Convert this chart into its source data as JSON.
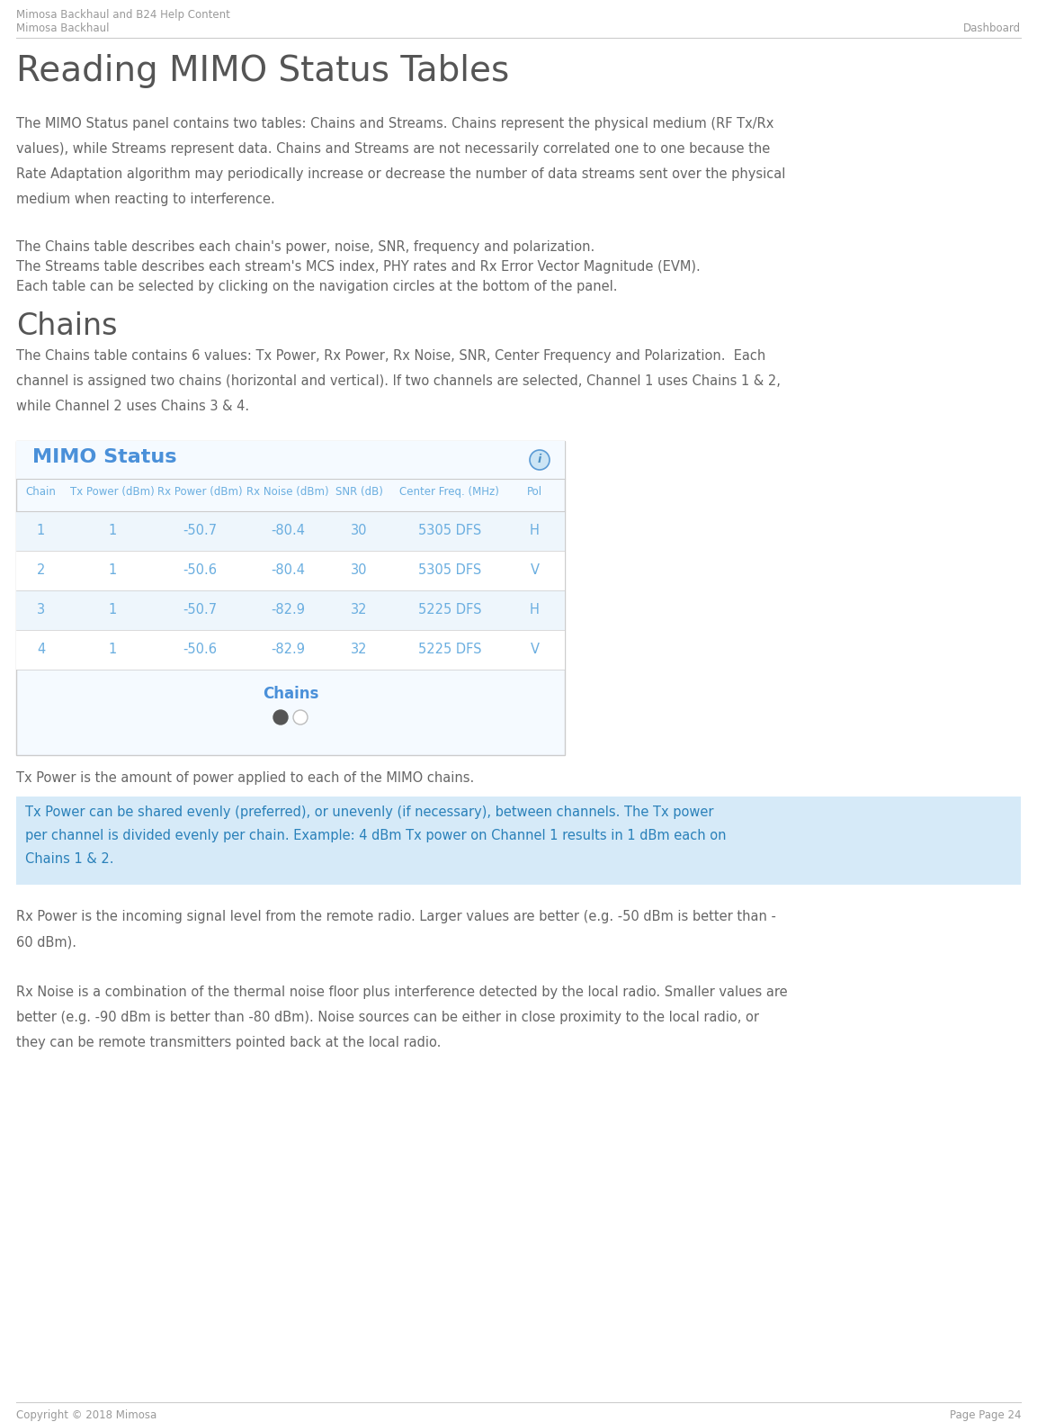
{
  "header_line1": "Mimosa Backhaul and B24 Help Content",
  "header_line2": "Mimosa Backhaul",
  "header_right": "Dashboard",
  "page_title": "Reading MIMO Status Tables",
  "para1": "The MIMO Status panel contains two tables: Chains and Streams. Chains represent the physical medium (RF Tx/Rx values), while Streams represent data. Chains and Streams are not necessarily correlated one to one because the Rate Adaptation algorithm may periodically increase or decrease the number of data streams sent over the physical medium when reacting to interference.",
  "para2_line1": "The Chains table describes each chain's power, noise, SNR, frequency and polarization.",
  "para2_line2": "The Streams table describes each stream's MCS index, PHY rates and Rx Error Vector Magnitude (EVM).",
  "para2_line3": "Each table can be selected by clicking on the navigation circles at the bottom of the panel.",
  "section_chains": "Chains",
  "para3": "The Chains table contains 6 values: Tx Power, Rx Power, Rx Noise, SNR, Center Frequency and Polarization.  Each channel is assigned two chains (horizontal and vertical). If two channels are selected, Channel 1 uses Chains 1 & 2, while Channel 2 uses Chains 3 & 4.",
  "table_title": "MIMO Status",
  "table_headers": [
    "Chain",
    "Tx Power (dBm)",
    "Rx Power (dBm)",
    "Rx Noise (dBm)",
    "SNR (dB)",
    "Center Freq. (MHz)",
    "Pol"
  ],
  "table_rows": [
    [
      "1",
      "1",
      "-50.7",
      "-80.4",
      "30",
      "5305 DFS",
      "H"
    ],
    [
      "2",
      "1",
      "-50.6",
      "-80.4",
      "30",
      "5305 DFS",
      "V"
    ],
    [
      "3",
      "1",
      "-50.7",
      "-82.9",
      "32",
      "5225 DFS",
      "H"
    ],
    [
      "4",
      "1",
      "-50.6",
      "-82.9",
      "32",
      "5225 DFS",
      "V"
    ]
  ],
  "table_footer_label": "Chains",
  "tx_power_para": "Tx Power is the amount of power applied to each of the MIMO chains.",
  "highlight_box_text": "Tx Power can be shared evenly (preferred), or unevenly (if necessary), between channels. The Tx power\nper channel is divided evenly per chain. Example: 4 dBm Tx power on Channel 1 results in 1 dBm each on\nChains 1 & 2.",
  "rx_power_para": "Rx Power is the incoming signal level from the remote radio. Larger values are better (e.g. -50 dBm is better than -\n60 dBm).",
  "rx_noise_para": "Rx Noise is a combination of the thermal noise floor plus interference detected by the local radio. Smaller values are\nbetter (e.g. -90 dBm is better than -80 dBm). Noise sources can be either in close proximity to the local radio, or\nthey can be remote transmitters pointed back at the local radio.",
  "footer_left": "Copyright © 2018 Mimosa",
  "footer_right": "Page Page 24",
  "bg_color": "#ffffff",
  "text_color": "#666666",
  "header_color": "#999999",
  "title_color": "#555555",
  "section_color": "#555555",
  "table_border_color": "#cccccc",
  "table_title_color": "#4a90d9",
  "table_header_text_color": "#6aaee0",
  "table_row_odd_bg": "#eef6fc",
  "table_row_even_bg": "#ffffff",
  "table_data_color": "#6aaee0",
  "highlight_bg": "#d6eaf8",
  "highlight_text_color": "#2980b9",
  "footer_line_color": "#cccccc",
  "table_outer_bg": "#f5faff"
}
